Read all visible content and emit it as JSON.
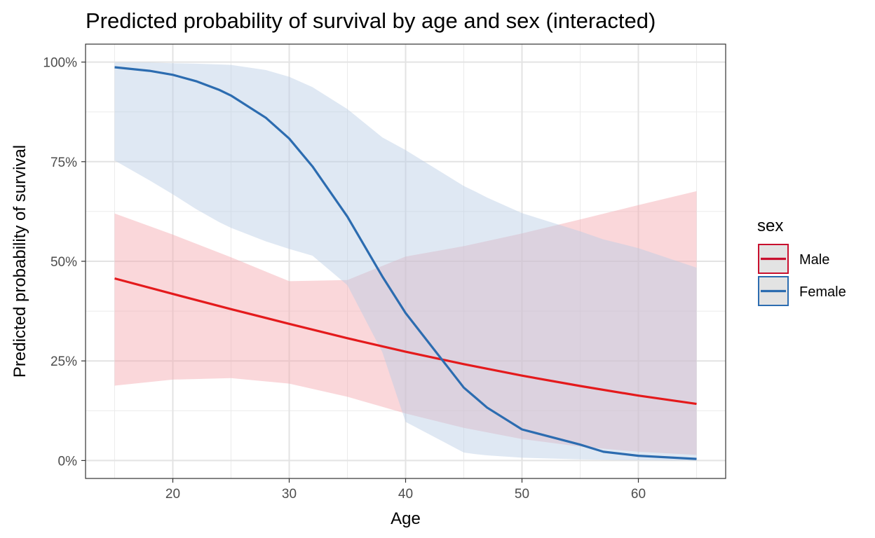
{
  "chart_data": {
    "type": "line",
    "title": "Predicted probability of survival by age and sex (interacted)",
    "xlabel": "Age",
    "ylabel": "Predicted probability of survival",
    "xlim": [
      12.5,
      67.5
    ],
    "ylim": [
      -0.045,
      1.045
    ],
    "x_ticks": [
      20,
      30,
      40,
      50,
      60
    ],
    "y_ticks": [
      0,
      0.25,
      0.5,
      0.75,
      1.0
    ],
    "y_tick_labels": [
      "0%",
      "25%",
      "50%",
      "75%",
      "100%"
    ],
    "grid": true,
    "legend": {
      "title": "sex",
      "position": "right"
    },
    "series": [
      {
        "name": "Male",
        "color": "#E41A1C",
        "legend_color": "#C8102E",
        "band_color": "#F4A6AD",
        "x": [
          15,
          20,
          25,
          30,
          35,
          40,
          45,
          50,
          55,
          60,
          65
        ],
        "y": [
          0.457,
          0.418,
          0.38,
          0.343,
          0.307,
          0.273,
          0.242,
          0.213,
          0.187,
          0.163,
          0.142
        ],
        "lower": [
          0.188,
          0.203,
          0.207,
          0.193,
          0.16,
          0.118,
          0.082,
          0.054,
          0.035,
          0.022,
          0.014
        ],
        "upper": [
          0.62,
          0.567,
          0.51,
          0.45,
          0.453,
          0.512,
          0.538,
          0.57,
          0.605,
          0.641,
          0.676
        ]
      },
      {
        "name": "Female",
        "color": "#2C6CB0",
        "legend_color": "#2C6CB0",
        "band_color": "#B8CCE4",
        "x": [
          15,
          18,
          20,
          22,
          24,
          25,
          28,
          30,
          32,
          35,
          38,
          40,
          45,
          46,
          47,
          50,
          55,
          57,
          60,
          65
        ],
        "y": [
          0.987,
          0.978,
          0.968,
          0.952,
          0.93,
          0.916,
          0.86,
          0.808,
          0.738,
          0.612,
          0.462,
          0.37,
          0.183,
          0.158,
          0.133,
          0.078,
          0.04,
          0.022,
          0.012,
          0.004
        ],
        "lower": [
          0.753,
          0.703,
          0.668,
          0.631,
          0.598,
          0.584,
          0.55,
          0.531,
          0.514,
          0.44,
          0.272,
          0.097,
          0.02,
          0.016,
          0.013,
          0.007,
          0.003,
          0.002,
          0.001,
          0.0
        ],
        "upper": [
          0.999,
          0.999,
          0.997,
          0.996,
          0.994,
          0.993,
          0.98,
          0.963,
          0.937,
          0.882,
          0.811,
          0.779,
          0.689,
          0.675,
          0.66,
          0.621,
          0.575,
          0.555,
          0.533,
          0.484
        ]
      }
    ]
  }
}
